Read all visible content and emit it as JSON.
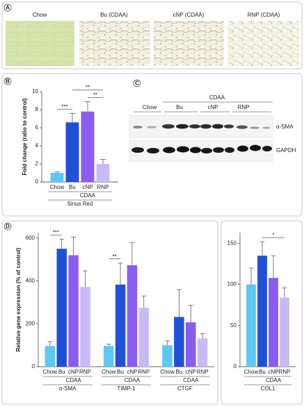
{
  "panel_labels": [
    "A",
    "B",
    "C",
    "D"
  ],
  "panel_a": {
    "labels": [
      "Chow",
      "Bu (CDAA)",
      "cNP (CDAA)",
      "RNP (CDAA)"
    ]
  },
  "panel_c": {
    "group": "CDAA",
    "lanes": [
      "Chow",
      "Bu",
      "cNP",
      "RNP"
    ],
    "bands": [
      "α-SMA",
      "GAPDH"
    ]
  },
  "chart_data": [
    {
      "type": "bar",
      "ylabel": "Fold change (ratio to control)",
      "categories": [
        "Chow",
        "Bu",
        "cNP",
        "RNP"
      ],
      "colors": [
        "#5cc9f2",
        "#2150d8",
        "#8a5cf2",
        "#c9baf6"
      ],
      "group_label": "CDAA",
      "ylim": [
        0,
        10
      ],
      "yticks": [
        0,
        2,
        4,
        6,
        8,
        10
      ],
      "groups": [
        {
          "name": "Sirius Red",
          "values": [
            1.0,
            6.6,
            7.8,
            2.0
          ],
          "errors": [
            0.1,
            1.0,
            1.1,
            0.5
          ],
          "annotations": [
            {
              "text": "***",
              "between": [
                "Chow",
                "Bu"
              ]
            },
            {
              "text": "**",
              "between": [
                "cNP",
                "RNP"
              ]
            },
            {
              "text": "**",
              "between": [
                "Bu",
                "RNP"
              ]
            }
          ]
        }
      ]
    },
    {
      "type": "bar",
      "ylabel": "Relative gene expression (% of control)",
      "categories": [
        "Chow",
        "Bu",
        "cNP",
        "RNP"
      ],
      "colors": [
        "#5cc9f2",
        "#2150d8",
        "#8a5cf2",
        "#c9baf6"
      ],
      "group_label": "CDAA",
      "ylim": [
        0,
        625
      ],
      "yticks": [
        0,
        200,
        400,
        600
      ],
      "groups": [
        {
          "name": "α-SMA",
          "values": [
            97,
            550,
            520,
            372
          ],
          "errors": [
            20,
            45,
            85,
            75
          ],
          "annotations": [
            {
              "text": "***",
              "between": [
                "Chow",
                "Bu"
              ]
            }
          ]
        },
        {
          "name": "TIMP-1",
          "values": [
            97,
            383,
            473,
            275
          ],
          "errors": [
            8,
            100,
            105,
            55
          ],
          "annotations": [
            {
              "text": "**",
              "between": [
                "Chow",
                "Bu"
              ]
            }
          ]
        },
        {
          "name": "CTGF",
          "values": [
            100,
            232,
            207,
            132
          ],
          "errors": [
            20,
            128,
            80,
            22
          ],
          "annotations": []
        }
      ]
    },
    {
      "type": "bar",
      "categories": [
        "Chow",
        "Bu",
        "cNP",
        "RNP"
      ],
      "colors": [
        "#5cc9f2",
        "#2150d8",
        "#8a5cf2",
        "#c9baf6"
      ],
      "group_label": "CDAA",
      "ylim": [
        0,
        163
      ],
      "yticks": [
        0,
        50,
        100,
        150
      ],
      "groups": [
        {
          "name": "COL1",
          "values": [
            100,
            135,
            108,
            84
          ],
          "errors": [
            20,
            17,
            27,
            12
          ],
          "annotations": [
            {
              "text": "*",
              "between": [
                "Bu",
                "RNP"
              ]
            }
          ]
        }
      ]
    }
  ]
}
